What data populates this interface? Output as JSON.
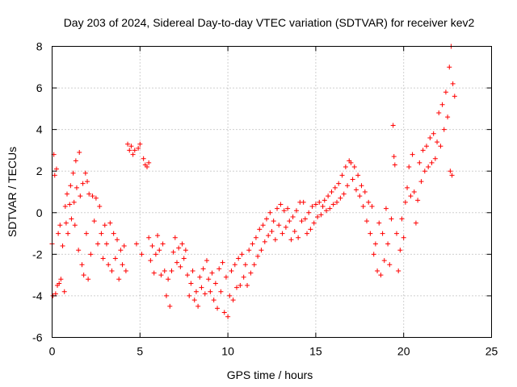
{
  "chart_data": {
    "type": "scatter",
    "title": "Day 203 of 2024, Sidereal Day-to-day VTEC variation (SDTVAR) for receiver kev2",
    "xlabel": "GPS time / hours",
    "ylabel": "SDTVAR / TECUs",
    "xlim": [
      0,
      25
    ],
    "ylim": [
      -6,
      8
    ],
    "xticks": [
      "0",
      "5",
      "10",
      "15",
      "20",
      "25"
    ],
    "yticks": [
      "-6",
      "-4",
      "-2",
      "0",
      "2",
      "4",
      "6",
      "8"
    ],
    "grid": true,
    "marker": "+",
    "color": "#ff0000",
    "series": [
      {
        "name": "SDTVAR",
        "points": [
          [
            0.0,
            -1.5
          ],
          [
            0.05,
            -4.0
          ],
          [
            0.1,
            2.8
          ],
          [
            0.15,
            1.8
          ],
          [
            0.2,
            -3.9
          ],
          [
            0.25,
            2.1
          ],
          [
            0.3,
            -3.5
          ],
          [
            0.35,
            -1.0
          ],
          [
            0.4,
            -3.4
          ],
          [
            0.45,
            -0.6
          ],
          [
            0.5,
            -3.2
          ],
          [
            0.6,
            -1.6
          ],
          [
            0.7,
            -3.8
          ],
          [
            0.75,
            0.3
          ],
          [
            0.8,
            -0.5
          ],
          [
            0.85,
            0.9
          ],
          [
            0.9,
            -1.0
          ],
          [
            1.0,
            0.4
          ],
          [
            1.05,
            1.3
          ],
          [
            1.1,
            -0.3
          ],
          [
            1.2,
            1.9
          ],
          [
            1.25,
            0.5
          ],
          [
            1.3,
            -0.6
          ],
          [
            1.35,
            2.5
          ],
          [
            1.4,
            1.2
          ],
          [
            1.5,
            -1.8
          ],
          [
            1.55,
            2.9
          ],
          [
            1.6,
            0.8
          ],
          [
            1.7,
            -2.5
          ],
          [
            1.75,
            1.4
          ],
          [
            1.8,
            -3.0
          ],
          [
            1.9,
            1.9
          ],
          [
            1.95,
            -1.0
          ],
          [
            2.0,
            1.5
          ],
          [
            2.05,
            -3.2
          ],
          [
            2.1,
            0.9
          ],
          [
            2.2,
            -2.0
          ],
          [
            2.3,
            0.8
          ],
          [
            2.4,
            -0.4
          ],
          [
            2.5,
            0.7
          ],
          [
            2.6,
            -1.5
          ],
          [
            2.7,
            0.3
          ],
          [
            2.8,
            -1.0
          ],
          [
            2.9,
            -2.2
          ],
          [
            3.0,
            -0.6
          ],
          [
            3.1,
            -1.5
          ],
          [
            3.2,
            -2.5
          ],
          [
            3.3,
            -0.5
          ],
          [
            3.4,
            -2.8
          ],
          [
            3.5,
            -1.0
          ],
          [
            3.6,
            -2.2
          ],
          [
            3.7,
            -1.3
          ],
          [
            3.8,
            -3.2
          ],
          [
            3.9,
            -1.8
          ],
          [
            4.0,
            -2.5
          ],
          [
            4.1,
            -1.6
          ],
          [
            4.2,
            -2.8
          ],
          [
            4.3,
            3.3
          ],
          [
            4.4,
            3.0
          ],
          [
            4.5,
            3.2
          ],
          [
            4.6,
            2.8
          ],
          [
            4.7,
            3.0
          ],
          [
            4.8,
            -1.5
          ],
          [
            4.9,
            3.1
          ],
          [
            5.0,
            3.3
          ],
          [
            5.1,
            -2.0
          ],
          [
            5.2,
            2.6
          ],
          [
            5.3,
            2.3
          ],
          [
            5.4,
            2.2
          ],
          [
            5.5,
            2.4
          ],
          [
            5.5,
            -1.2
          ],
          [
            5.6,
            -2.3
          ],
          [
            5.7,
            -1.6
          ],
          [
            5.8,
            -2.9
          ],
          [
            5.9,
            -2.0
          ],
          [
            6.0,
            -1.1
          ],
          [
            6.1,
            -1.8
          ],
          [
            6.2,
            -3.0
          ],
          [
            6.3,
            -1.5
          ],
          [
            6.4,
            -2.8
          ],
          [
            6.5,
            -4.0
          ],
          [
            6.6,
            -3.2
          ],
          [
            6.7,
            -4.5
          ],
          [
            6.8,
            -2.8
          ],
          [
            6.9,
            -1.9
          ],
          [
            7.0,
            -1.2
          ],
          [
            7.1,
            -2.4
          ],
          [
            7.2,
            -1.7
          ],
          [
            7.3,
            -2.6
          ],
          [
            7.4,
            -1.5
          ],
          [
            7.5,
            -2.2
          ],
          [
            7.6,
            -1.8
          ],
          [
            7.7,
            -3.0
          ],
          [
            7.8,
            -4.0
          ],
          [
            7.9,
            -3.4
          ],
          [
            8.0,
            -2.8
          ],
          [
            8.1,
            -4.2
          ],
          [
            8.2,
            -3.8
          ],
          [
            8.3,
            -4.5
          ],
          [
            8.4,
            -3.1
          ],
          [
            8.5,
            -3.6
          ],
          [
            8.6,
            -2.7
          ],
          [
            8.7,
            -3.9
          ],
          [
            8.8,
            -2.3
          ],
          [
            8.9,
            -3.2
          ],
          [
            9.0,
            -3.8
          ],
          [
            9.1,
            -2.9
          ],
          [
            9.2,
            -4.2
          ],
          [
            9.3,
            -3.4
          ],
          [
            9.4,
            -4.6
          ],
          [
            9.5,
            -2.7
          ],
          [
            9.6,
            -3.8
          ],
          [
            9.7,
            -2.4
          ],
          [
            9.8,
            -4.8
          ],
          [
            9.9,
            -3.1
          ],
          [
            10.0,
            -5.0
          ],
          [
            10.1,
            -4.0
          ],
          [
            10.2,
            -2.8
          ],
          [
            10.3,
            -4.2
          ],
          [
            10.4,
            -2.5
          ],
          [
            10.5,
            -3.6
          ],
          [
            10.6,
            -2.2
          ],
          [
            10.7,
            -3.5
          ],
          [
            10.8,
            -2.0
          ],
          [
            10.9,
            -3.1
          ],
          [
            11.0,
            -2.5
          ],
          [
            11.1,
            -3.5
          ],
          [
            11.2,
            -1.8
          ],
          [
            11.3,
            -2.9
          ],
          [
            11.4,
            -1.5
          ],
          [
            11.5,
            -2.5
          ],
          [
            11.6,
            -1.2
          ],
          [
            11.7,
            -2.1
          ],
          [
            11.8,
            -0.8
          ],
          [
            11.9,
            -1.8
          ],
          [
            12.0,
            -0.6
          ],
          [
            12.1,
            -1.4
          ],
          [
            12.2,
            -0.3
          ],
          [
            12.3,
            -1.1
          ],
          [
            12.4,
            0.0
          ],
          [
            12.5,
            -0.9
          ],
          [
            12.6,
            -0.4
          ],
          [
            12.7,
            -1.3
          ],
          [
            12.8,
            0.2
          ],
          [
            12.9,
            -0.6
          ],
          [
            13.0,
            0.4
          ],
          [
            13.1,
            -1.0
          ],
          [
            13.2,
            0.1
          ],
          [
            13.3,
            -0.7
          ],
          [
            13.4,
            0.2
          ],
          [
            13.5,
            -0.4
          ],
          [
            13.6,
            -1.3
          ],
          [
            13.7,
            -0.2
          ],
          [
            13.8,
            -0.9
          ],
          [
            13.9,
            0.1
          ],
          [
            14.0,
            -1.2
          ],
          [
            14.1,
            0.5
          ],
          [
            14.2,
            -0.4
          ],
          [
            14.3,
            0.5
          ],
          [
            14.4,
            -0.3
          ],
          [
            14.5,
            -1.0
          ],
          [
            14.6,
            0.0
          ],
          [
            14.7,
            -0.8
          ],
          [
            14.8,
            0.3
          ],
          [
            14.9,
            -0.5
          ],
          [
            15.0,
            0.4
          ],
          [
            15.1,
            -0.2
          ],
          [
            15.2,
            0.5
          ],
          [
            15.3,
            -0.1
          ],
          [
            15.4,
            0.3
          ],
          [
            15.5,
            0.6
          ],
          [
            15.6,
            0.1
          ],
          [
            15.7,
            0.8
          ],
          [
            15.8,
            0.2
          ],
          [
            15.9,
            1.0
          ],
          [
            16.0,
            0.4
          ],
          [
            16.1,
            1.2
          ],
          [
            16.2,
            0.5
          ],
          [
            16.3,
            1.4
          ],
          [
            16.4,
            0.7
          ],
          [
            16.5,
            1.8
          ],
          [
            16.6,
            0.9
          ],
          [
            16.7,
            2.2
          ],
          [
            16.8,
            1.3
          ],
          [
            16.9,
            2.5
          ],
          [
            17.0,
            2.4
          ],
          [
            17.1,
            1.6
          ],
          [
            17.2,
            2.2
          ],
          [
            17.3,
            1.1
          ],
          [
            17.4,
            1.8
          ],
          [
            17.5,
            0.8
          ],
          [
            17.6,
            1.3
          ],
          [
            17.7,
            0.3
          ],
          [
            17.8,
            1.0
          ],
          [
            17.9,
            -0.4
          ],
          [
            18.0,
            0.5
          ],
          [
            18.1,
            -1.0
          ],
          [
            18.2,
            0.3
          ],
          [
            18.3,
            -2.0
          ],
          [
            18.4,
            -1.5
          ],
          [
            18.5,
            -2.8
          ],
          [
            18.6,
            -0.5
          ],
          [
            18.7,
            -3.0
          ],
          [
            18.8,
            -1.0
          ],
          [
            18.9,
            -2.3
          ],
          [
            19.0,
            0.2
          ],
          [
            19.1,
            -1.5
          ],
          [
            19.2,
            -2.5
          ],
          [
            19.3,
            -0.3
          ],
          [
            19.4,
            4.2
          ],
          [
            19.45,
            2.7
          ],
          [
            19.5,
            2.3
          ],
          [
            19.6,
            -1.0
          ],
          [
            19.7,
            -2.8
          ],
          [
            19.8,
            -1.8
          ],
          [
            19.9,
            -0.3
          ],
          [
            20.0,
            -1.2
          ],
          [
            20.1,
            0.5
          ],
          [
            20.2,
            1.2
          ],
          [
            20.3,
            2.2
          ],
          [
            20.4,
            0.8
          ],
          [
            20.5,
            2.8
          ],
          [
            20.6,
            1.0
          ],
          [
            20.7,
            -0.5
          ],
          [
            20.8,
            0.6
          ],
          [
            20.9,
            2.4
          ],
          [
            21.0,
            1.5
          ],
          [
            21.1,
            3.0
          ],
          [
            21.2,
            2.0
          ],
          [
            21.3,
            3.2
          ],
          [
            21.4,
            2.2
          ],
          [
            21.5,
            3.6
          ],
          [
            21.6,
            2.4
          ],
          [
            21.7,
            3.8
          ],
          [
            21.8,
            2.6
          ],
          [
            21.9,
            3.4
          ],
          [
            22.0,
            4.8
          ],
          [
            22.1,
            3.2
          ],
          [
            22.2,
            5.2
          ],
          [
            22.3,
            4.0
          ],
          [
            22.4,
            5.8
          ],
          [
            22.5,
            4.6
          ],
          [
            22.6,
            7.0
          ],
          [
            22.7,
            8.0
          ],
          [
            22.8,
            6.2
          ],
          [
            22.9,
            5.6
          ],
          [
            22.65,
            2.0
          ],
          [
            22.75,
            1.8
          ]
        ]
      }
    ]
  }
}
